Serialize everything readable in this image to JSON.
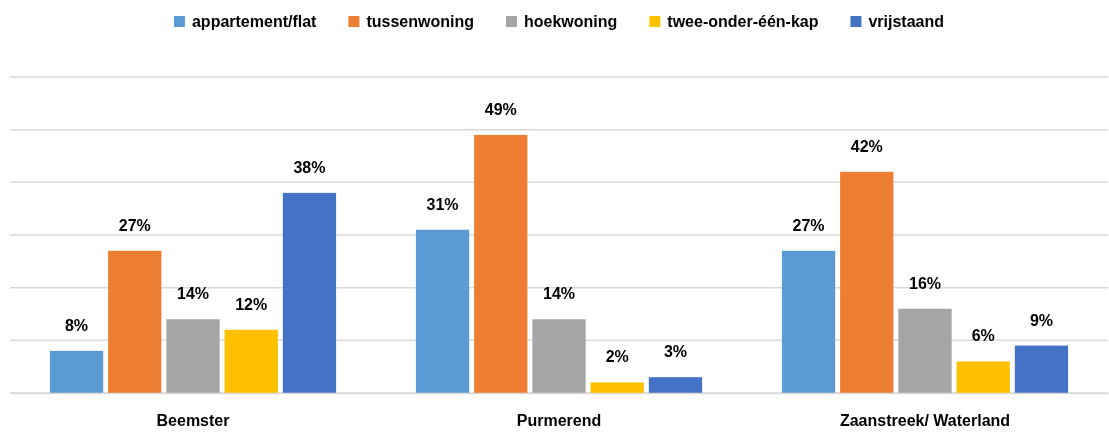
{
  "chart_data": {
    "type": "bar",
    "categories": [
      "Beemster",
      "Purmerend",
      "Zaanstreek/ Waterland"
    ],
    "series": [
      {
        "name": "appartement/flat",
        "color": "#5b9bd5",
        "values": [
          8,
          31,
          27
        ],
        "value_labels": [
          "8%",
          "31%",
          "27%"
        ]
      },
      {
        "name": "tussenwoning",
        "color": "#ed7d31",
        "values": [
          27,
          49,
          42
        ],
        "value_labels": [
          "27%",
          "49%",
          "42%"
        ]
      },
      {
        "name": "hoekwoning",
        "color": "#a5a5a5",
        "values": [
          14,
          14,
          16
        ],
        "value_labels": [
          "14%",
          "14%",
          "16%"
        ]
      },
      {
        "name": "twee-onder-één-kap",
        "color": "#ffc000",
        "values": [
          12,
          2,
          6
        ],
        "value_labels": [
          "12%",
          "2%",
          "6%"
        ]
      },
      {
        "name": "vrijstaand",
        "color": "#4472c4",
        "values": [
          38,
          3,
          9
        ],
        "value_labels": [
          "38%",
          "3%",
          "9%"
        ]
      }
    ],
    "ylim": [
      0,
      60
    ],
    "yticks": [
      {
        "value": 0,
        "label": null
      },
      {
        "value": 10,
        "label": null
      },
      {
        "value": 20,
        "label": null
      },
      {
        "value": 30,
        "label": null
      },
      {
        "value": 40,
        "label": null
      },
      {
        "value": 50,
        "label": null
      },
      {
        "value": 60,
        "label": null
      }
    ],
    "tick_labels": "x",
    "grid": "y",
    "legend": "top"
  }
}
